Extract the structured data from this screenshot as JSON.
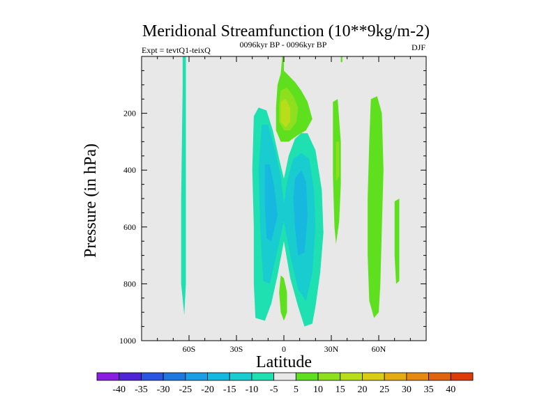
{
  "chart_data": {
    "type": "contour",
    "title": "Meridional Streamfunction (10**9kg/m-2)",
    "experiment": "Expt = tevtQ1-teixQ",
    "period": "0096kyr BP - 0096kyr BP",
    "season": "DJF",
    "xlabel": "Latitude",
    "ylabel": "Pressure (in hPa)",
    "xlim": [
      -90,
      90
    ],
    "ylim": [
      1000,
      0
    ],
    "x_ticks": [
      {
        "value": -60,
        "label": "60S"
      },
      {
        "value": -30,
        "label": "30S"
      },
      {
        "value": 0,
        "label": "0"
      },
      {
        "value": 30,
        "label": "30N"
      },
      {
        "value": 60,
        "label": "60N"
      }
    ],
    "y_ticks": [
      {
        "value": 200,
        "label": "200"
      },
      {
        "value": 400,
        "label": "400"
      },
      {
        "value": 600,
        "label": "600"
      },
      {
        "value": 800,
        "label": "800"
      },
      {
        "value": 1000,
        "label": "1000"
      }
    ],
    "colorbar": {
      "labels": [
        "-40",
        "-35",
        "-30",
        "-25",
        "-20",
        "-15",
        "-10",
        "-5",
        "5",
        "10",
        "15",
        "20",
        "25",
        "30",
        "35",
        "40"
      ],
      "colors": [
        "#8a1ee0",
        "#4e24d6",
        "#2a55e0",
        "#1e78e0",
        "#1a9ee6",
        "#16b8e0",
        "#18ccd0",
        "#1ee0b0",
        "#e8e8e8",
        "#5ee01e",
        "#8ee01e",
        "#b8de1a",
        "#d8cc14",
        "#e4ac12",
        "#e48a10",
        "#e06410",
        "#dc3c0a"
      ]
    },
    "regions": [
      {
        "level": "-5",
        "color": "#1ee0b0",
        "points": [
          [
            -64,
            0
          ],
          [
            -62,
            0
          ],
          [
            -62,
            500
          ],
          [
            -62,
            800
          ],
          [
            -63,
            910
          ],
          [
            -65,
            800
          ],
          [
            -65,
            500
          ],
          [
            -64,
            100
          ]
        ]
      },
      {
        "level": "-5",
        "color": "#1ee0b0",
        "points": [
          [
            -19,
            210
          ],
          [
            -16,
            180
          ],
          [
            -11,
            190
          ],
          [
            -7,
            260
          ],
          [
            -3,
            360
          ],
          [
            0,
            430
          ],
          [
            3,
            350
          ],
          [
            7,
            290
          ],
          [
            11,
            270
          ],
          [
            15,
            270
          ],
          [
            20,
            330
          ],
          [
            24,
            470
          ],
          [
            25,
            620
          ],
          [
            23,
            760
          ],
          [
            20,
            880
          ],
          [
            18,
            940
          ],
          [
            13,
            950
          ],
          [
            9,
            880
          ],
          [
            4,
            780
          ],
          [
            0,
            650
          ],
          [
            -4,
            770
          ],
          [
            -8,
            870
          ],
          [
            -12,
            930
          ],
          [
            -18,
            920
          ],
          [
            -19,
            800
          ],
          [
            -19,
            600
          ],
          [
            -20,
            400
          ]
        ]
      },
      {
        "level": "-10",
        "color": "#18ccd0",
        "points": [
          [
            -14,
            240
          ],
          [
            -10,
            240
          ],
          [
            -6,
            320
          ],
          [
            -2,
            420
          ],
          [
            0,
            520
          ],
          [
            2,
            440
          ],
          [
            6,
            360
          ],
          [
            11,
            340
          ],
          [
            16,
            360
          ],
          [
            19,
            470
          ],
          [
            20,
            600
          ],
          [
            18,
            760
          ],
          [
            14,
            860
          ],
          [
            9,
            820
          ],
          [
            4,
            700
          ],
          [
            0,
            580
          ],
          [
            -4,
            680
          ],
          [
            -9,
            800
          ],
          [
            -13,
            790
          ],
          [
            -15,
            600
          ],
          [
            -16,
            400
          ]
        ]
      },
      {
        "level": "-15",
        "color": "#16b8e0",
        "points": [
          [
            -12,
            380
          ],
          [
            -9,
            380
          ],
          [
            -6,
            460
          ],
          [
            -4,
            560
          ],
          [
            -8,
            650
          ],
          [
            -11,
            640
          ],
          [
            -12,
            520
          ]
        ]
      },
      {
        "level": "-15",
        "color": "#16b8e0",
        "points": [
          [
            7,
            430
          ],
          [
            11,
            400
          ],
          [
            14,
            440
          ],
          [
            15,
            560
          ],
          [
            13,
            690
          ],
          [
            9,
            700
          ],
          [
            7,
            600
          ],
          [
            6,
            500
          ]
        ]
      },
      {
        "level": "5",
        "color": "#5ee01e",
        "points": [
          [
            -1,
            -5
          ],
          [
            0,
            -5
          ],
          [
            0,
            50
          ],
          [
            7,
            90
          ],
          [
            11,
            120
          ],
          [
            15,
            160
          ],
          [
            18,
            220
          ],
          [
            14,
            260
          ],
          [
            8,
            280
          ],
          [
            3,
            300
          ],
          [
            -2,
            300
          ],
          [
            -5,
            260
          ],
          [
            -5,
            180
          ],
          [
            -4,
            100
          ],
          [
            -2,
            60
          ]
        ]
      },
      {
        "level": "10",
        "color": "#8ee01e",
        "points": [
          [
            -2,
            120
          ],
          [
            2,
            110
          ],
          [
            6,
            140
          ],
          [
            9,
            180
          ],
          [
            8,
            230
          ],
          [
            4,
            260
          ],
          [
            0,
            260
          ],
          [
            -3,
            230
          ],
          [
            -3,
            170
          ]
        ]
      },
      {
        "level": "15",
        "color": "#b8de1a",
        "points": [
          [
            -2,
            160
          ],
          [
            1,
            150
          ],
          [
            4,
            180
          ],
          [
            4,
            230
          ],
          [
            1,
            250
          ],
          [
            -2,
            230
          ]
        ]
      },
      {
        "level": "5",
        "color": "#5ee01e",
        "points": [
          [
            31,
            160
          ],
          [
            34,
            150
          ],
          [
            36,
            300
          ],
          [
            36,
            450
          ],
          [
            35,
            580
          ],
          [
            33,
            660
          ],
          [
            32,
            600
          ],
          [
            31,
            420
          ],
          [
            31,
            250
          ]
        ]
      },
      {
        "level": "10",
        "color": "#8ee01e",
        "points": [
          [
            33,
            300
          ],
          [
            35,
            300
          ],
          [
            35,
            420
          ],
          [
            33,
            440
          ]
        ]
      },
      {
        "level": "5",
        "color": "#5ee01e",
        "points": [
          [
            -2,
            770
          ],
          [
            0,
            780
          ],
          [
            2,
            830
          ],
          [
            2,
            900
          ],
          [
            0,
            930
          ],
          [
            -2,
            900
          ],
          [
            -3,
            830
          ]
        ]
      },
      {
        "level": "5",
        "color": "#5ee01e",
        "points": [
          [
            55,
            150
          ],
          [
            59,
            140
          ],
          [
            62,
            200
          ],
          [
            63,
            400
          ],
          [
            62,
            600
          ],
          [
            61,
            800
          ],
          [
            60,
            900
          ],
          [
            57,
            920
          ],
          [
            54,
            860
          ],
          [
            53,
            700
          ],
          [
            53,
            500
          ],
          [
            54,
            300
          ]
        ]
      },
      {
        "level": "5",
        "color": "#5ee01e",
        "points": [
          [
            70,
            510
          ],
          [
            73,
            500
          ],
          [
            73,
            790
          ],
          [
            71,
            800
          ],
          [
            70,
            700
          ]
        ]
      },
      {
        "level": "5",
        "color": "#5ee01e",
        "points": [
          [
            36,
            0
          ],
          [
            37,
            0
          ],
          [
            37,
            20
          ],
          [
            36,
            20
          ]
        ]
      }
    ]
  }
}
